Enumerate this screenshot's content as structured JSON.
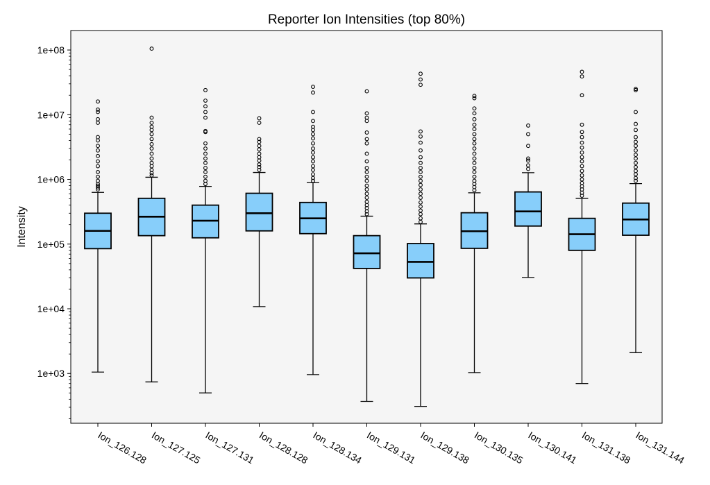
{
  "chart_data": {
    "type": "box",
    "title": "Reporter Ion Intensities (top 80%)",
    "xlabel": "",
    "ylabel": "Intensity",
    "yscale": "log",
    "ylim": [
      170,
      200000000
    ],
    "yticks": [
      {
        "value": 1000,
        "label": "1e+03"
      },
      {
        "value": 10000,
        "label": "1e+04"
      },
      {
        "value": 100000,
        "label": "1e+05"
      },
      {
        "value": 1000000,
        "label": "1e+06"
      },
      {
        "value": 10000000,
        "label": "1e+07"
      },
      {
        "value": 100000000,
        "label": "1e+08"
      }
    ],
    "grid": false,
    "colors": {
      "box_fill": "#87CEFA",
      "plot_bg": "#F5F5F5",
      "edge": "#000000"
    },
    "categories": [
      "Ion_126.128",
      "Ion_127.125",
      "Ion_127.131",
      "Ion_128.128",
      "Ion_128.134",
      "Ion_129.131",
      "Ion_129.138",
      "Ion_130.135",
      "Ion_130.141",
      "Ion_131.138",
      "Ion_131.144"
    ],
    "boxes": [
      {
        "whisker_low": 1050,
        "q1": 85000,
        "median": 160000,
        "q3": 300000,
        "whisker_high": 630000,
        "outliers": [
          700000,
          750000,
          800000,
          850000,
          950000,
          1100000,
          1300000,
          1600000,
          1900000,
          2300000,
          2800000,
          3300000,
          4000000,
          4500000,
          7500000,
          8500000,
          11000000,
          12000000,
          16000000
        ]
      },
      {
        "whisker_low": 740,
        "q1": 135000,
        "median": 265000,
        "q3": 510000,
        "whisker_high": 1080000,
        "outliers": [
          1150000,
          1250000,
          1400000,
          1600000,
          1800000,
          2100000,
          2500000,
          3000000,
          3500000,
          4200000,
          5000000,
          5800000,
          6500000,
          7500000,
          9000000,
          105000000
        ]
      },
      {
        "whisker_low": 500,
        "q1": 125000,
        "median": 230000,
        "q3": 400000,
        "whisker_high": 780000,
        "outliers": [
          850000,
          950000,
          1100000,
          1300000,
          1500000,
          1800000,
          2100000,
          2500000,
          3000000,
          3600000,
          5400000,
          5600000,
          9000000,
          11000000,
          13500000,
          16500000,
          24000000
        ]
      },
      {
        "whisker_low": 10800,
        "q1": 160000,
        "median": 300000,
        "q3": 610000,
        "whisker_high": 1280000,
        "outliers": [
          1400000,
          1550000,
          1700000,
          1950000,
          2200000,
          2500000,
          2900000,
          3300000,
          3800000,
          4200000,
          7500000,
          8800000
        ]
      },
      {
        "whisker_low": 960,
        "q1": 145000,
        "median": 250000,
        "q3": 440000,
        "whisker_high": 890000,
        "outliers": [
          950000,
          1050000,
          1200000,
          1400000,
          1600000,
          1900000,
          2200000,
          2600000,
          3000000,
          3600000,
          4300000,
          5000000,
          5800000,
          6500000,
          8000000,
          11000000,
          22000000,
          27000000
        ]
      },
      {
        "whisker_low": 370,
        "q1": 42000,
        "median": 72000,
        "q3": 135000,
        "whisker_high": 270000,
        "outliers": [
          290000,
          320000,
          360000,
          400000,
          450000,
          520000,
          600000,
          700000,
          800000,
          950000,
          1100000,
          1300000,
          1500000,
          1900000,
          2500000,
          3600000,
          4200000,
          5300000,
          8000000,
          9000000,
          10500000,
          23000000
        ]
      },
      {
        "whisker_low": 310,
        "q1": 30000,
        "median": 53000,
        "q3": 102000,
        "whisker_high": 205000,
        "outliers": [
          220000,
          250000,
          290000,
          330000,
          380000,
          440000,
          520000,
          600000,
          700000,
          820000,
          950000,
          1100000,
          1300000,
          1500000,
          1800000,
          2200000,
          2800000,
          3700000,
          4600000,
          5500000,
          29000000,
          35000000,
          43000000
        ]
      },
      {
        "whisker_low": 1030,
        "q1": 86000,
        "median": 158000,
        "q3": 305000,
        "whisker_high": 620000,
        "outliers": [
          680000,
          760000,
          850000,
          950000,
          1100000,
          1300000,
          1500000,
          1800000,
          2100000,
          2500000,
          3000000,
          3600000,
          4200000,
          5000000,
          6000000,
          7000000,
          8500000,
          10500000,
          12500000,
          18000000,
          19500000
        ]
      },
      {
        "whisker_low": 30500,
        "q1": 190000,
        "median": 320000,
        "q3": 640000,
        "whisker_high": 1270000,
        "outliers": [
          1450000,
          1650000,
          1950000,
          2100000,
          3300000,
          5000000,
          6800000
        ]
      },
      {
        "whisker_low": 700,
        "q1": 80000,
        "median": 142000,
        "q3": 250000,
        "whisker_high": 510000,
        "outliers": [
          560000,
          620000,
          700000,
          780000,
          880000,
          1000000,
          1150000,
          1350000,
          1600000,
          1900000,
          2200000,
          2600000,
          3100000,
          3700000,
          4500000,
          5400000,
          7000000,
          20000000,
          39000000,
          46000000
        ]
      },
      {
        "whisker_low": 2100,
        "q1": 137000,
        "median": 240000,
        "q3": 430000,
        "whisker_high": 860000,
        "outliers": [
          950000,
          1050000,
          1200000,
          1350000,
          1550000,
          1800000,
          2100000,
          2400000,
          2800000,
          3300000,
          3800000,
          4500000,
          5800000,
          7200000,
          11000000,
          24000000,
          25000000
        ]
      }
    ]
  }
}
